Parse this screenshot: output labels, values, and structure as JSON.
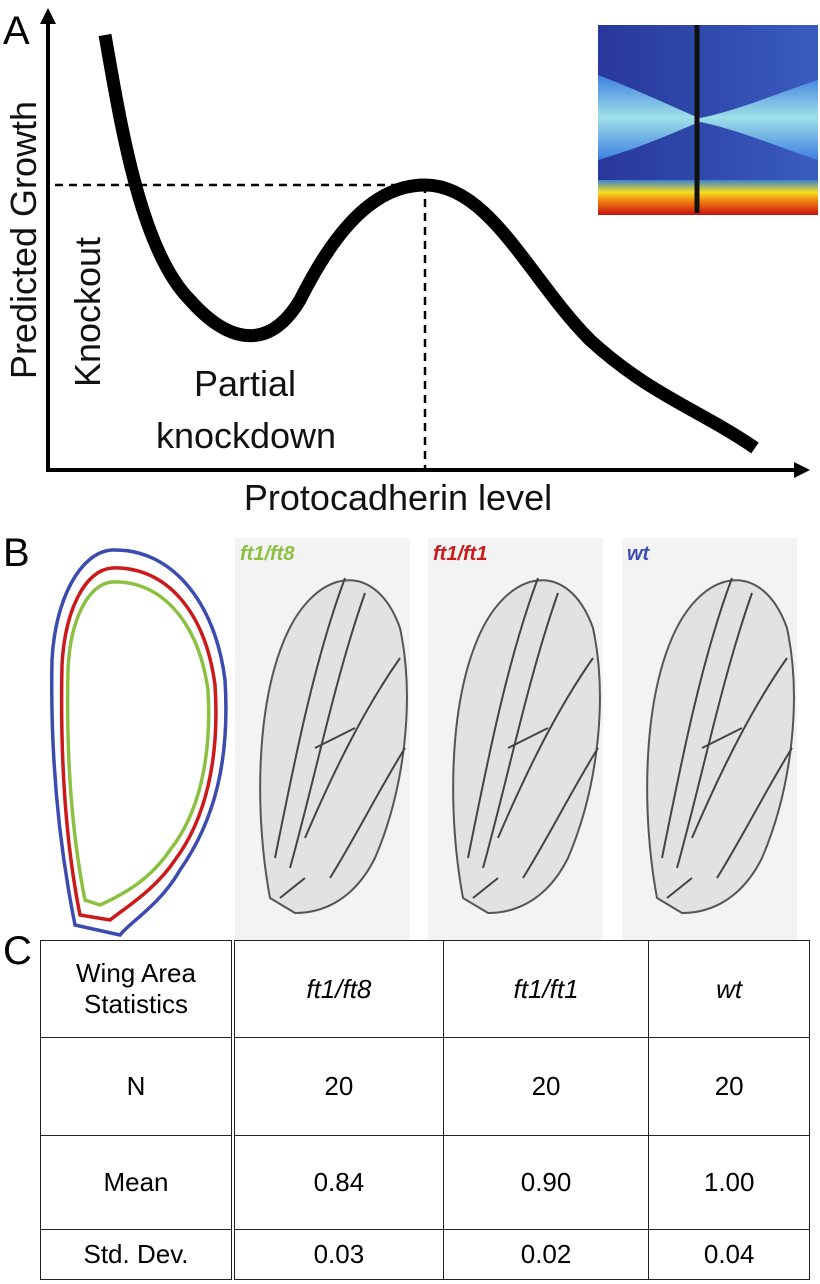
{
  "panel_a": {
    "label": "A",
    "y_axis_label": "Predicted Growth",
    "x_axis_label": "Protocadherin level",
    "annotations": {
      "knockout": "Knockout",
      "partial": "Partial",
      "knockdown": "knockdown"
    }
  },
  "panel_b": {
    "label": "B",
    "genotypes": [
      "ft1/ft8",
      "ft1/ft1",
      "wt"
    ]
  },
  "panel_c": {
    "label": "C",
    "table": {
      "header": [
        "Wing Area Statistics",
        "ft1/ft8",
        "ft1/ft1",
        "wt"
      ],
      "rows": [
        [
          "N",
          "20",
          "20",
          "20"
        ],
        [
          "Mean",
          "0.84",
          "0.90",
          "1.00"
        ],
        [
          "Std. Dev.",
          "0.03",
          "0.02",
          "0.04"
        ]
      ]
    }
  }
}
